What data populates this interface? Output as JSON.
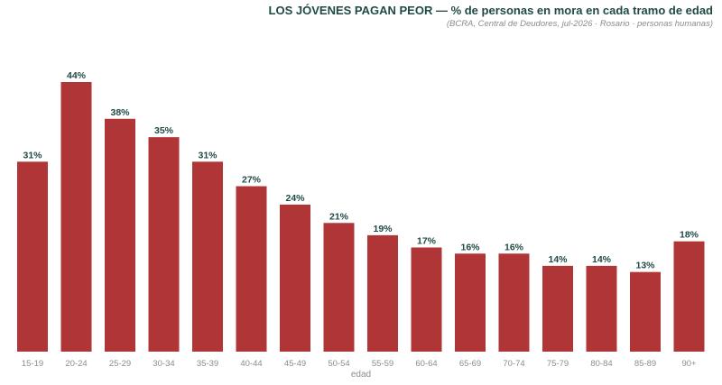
{
  "chart_data": {
    "type": "bar",
    "title": "LOS JÓVENES PAGAN PEOR — % de personas en mora en cada tramo de edad",
    "subtitle": "(BCRA, Central de Deudores, jul-2026 · Rosario · personas humanas)",
    "xlabel": "edad",
    "ylabel": "",
    "categories": [
      "15-19",
      "20-24",
      "25-29",
      "30-34",
      "35-39",
      "40-44",
      "45-49",
      "50-54",
      "55-59",
      "60-64",
      "65-69",
      "70-74",
      "75-79",
      "80-84",
      "85-89",
      "90+"
    ],
    "values": [
      31,
      44,
      38,
      35,
      31,
      27,
      24,
      21,
      19,
      17,
      16,
      16,
      14,
      14,
      13,
      18
    ],
    "value_labels": [
      "31%",
      "44%",
      "38%",
      "35%",
      "31%",
      "27%",
      "24%",
      "21%",
      "19%",
      "17%",
      "16%",
      "16%",
      "14%",
      "14%",
      "13%",
      "18%"
    ],
    "ylim": [
      0,
      44
    ],
    "grid": false,
    "colors": {
      "bar": "#b03536",
      "title": "#1f4a44",
      "muted": "#8c8c8c"
    }
  }
}
